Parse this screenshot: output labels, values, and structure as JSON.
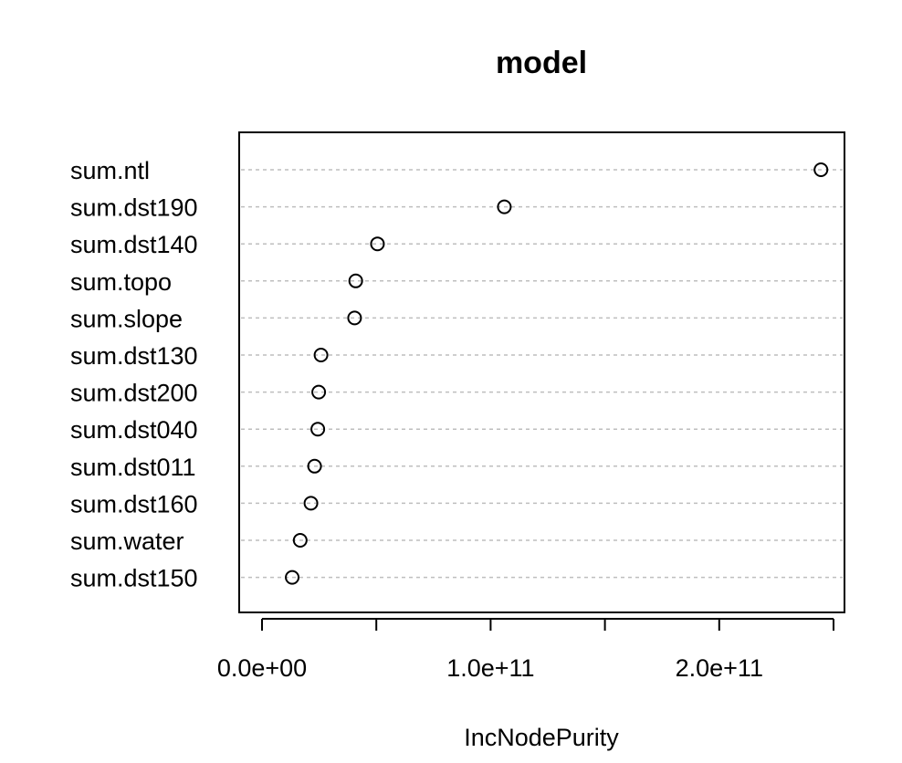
{
  "chart_data": {
    "type": "scatter",
    "title": "model",
    "xlabel": "IncNodePurity",
    "ylabel": "",
    "categories": [
      "sum.ntl",
      "sum.dst190",
      "sum.dst140",
      "sum.topo",
      "sum.slope",
      "sum.dst130",
      "sum.dst200",
      "sum.dst040",
      "sum.dst011",
      "sum.dst160",
      "sum.water",
      "sum.dst150"
    ],
    "values": [
      244500000000,
      106000000000,
      50500000000,
      41000000000,
      40500000000,
      25800000000,
      24800000000,
      24400000000,
      23000000000,
      21400000000,
      16700000000,
      13200000000
    ],
    "x_ticks": [
      0,
      50000000000,
      100000000000,
      150000000000,
      200000000000,
      250000000000
    ],
    "x_tick_labels": [
      "0.0e+00",
      "",
      "1.0e+11",
      "",
      "2.0e+11",
      ""
    ],
    "xlim": [
      -10000000000,
      254000000000
    ],
    "grid": true,
    "marker": "open-circle",
    "colors": {
      "points": "#000000",
      "grid": "#bebebe",
      "frame": "#000000"
    }
  }
}
